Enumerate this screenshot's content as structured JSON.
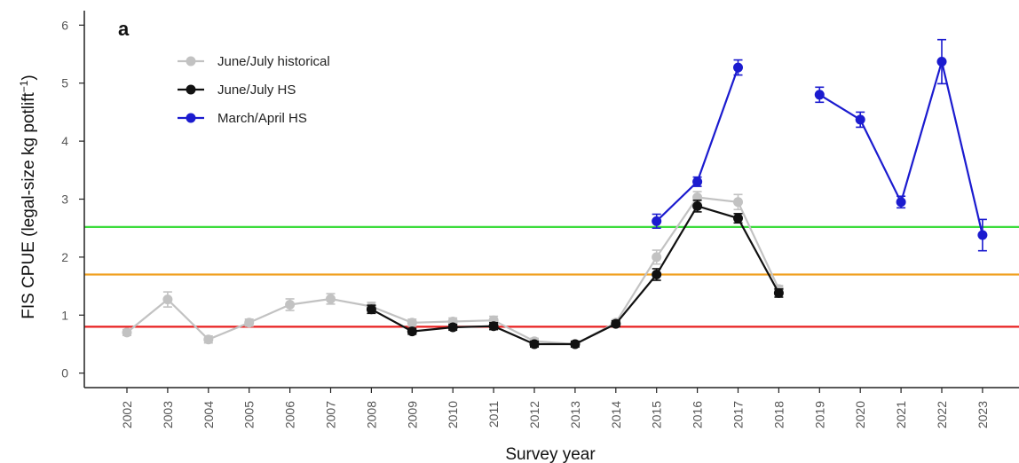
{
  "chart_data": {
    "type": "line",
    "panel_label": "a",
    "xlabel": "Survey year",
    "ylabel": "FIS CPUE (legal-size kg potlift",
    "ylabel_sup": "−1",
    "ylabel_close": ")",
    "x": [
      "2002",
      "2003",
      "2004",
      "2005",
      "2006",
      "2007",
      "2008",
      "2009",
      "2010",
      "2011",
      "2012",
      "2013",
      "2014",
      "2015",
      "2016",
      "2017",
      "2018",
      "2019",
      "2020",
      "2021",
      "2022",
      "2023"
    ],
    "ylim": [
      -0.25,
      6.25
    ],
    "yticks": [
      0,
      1,
      2,
      3,
      4,
      5,
      6
    ],
    "yticks_labels": [
      "0",
      "1",
      "2",
      "3",
      "4",
      "5",
      "6"
    ],
    "grid": false,
    "legend_position": "top-left",
    "series": [
      {
        "name": "June/July historical",
        "color": "#c2c2c2",
        "points": [
          {
            "x": "2002",
            "y": 0.7,
            "err": 0.05
          },
          {
            "x": "2003",
            "y": 1.27,
            "err": 0.13
          },
          {
            "x": "2004",
            "y": 0.58,
            "err": 0.06
          },
          {
            "x": "2005",
            "y": 0.87,
            "err": 0.06
          },
          {
            "x": "2006",
            "y": 1.18,
            "err": 0.1
          },
          {
            "x": "2007",
            "y": 1.28,
            "err": 0.09
          },
          {
            "x": "2008",
            "y": 1.15,
            "err": 0.07
          },
          {
            "x": "2009",
            "y": 0.87,
            "err": 0.06
          },
          {
            "x": "2010",
            "y": 0.89,
            "err": 0.06
          },
          {
            "x": "2011",
            "y": 0.91,
            "err": 0.07
          },
          {
            "x": "2012",
            "y": 0.55,
            "err": 0.05
          },
          {
            "x": "2013",
            "y": 0.5,
            "err": 0.05
          },
          {
            "x": "2014",
            "y": 0.87,
            "err": 0.05
          },
          {
            "x": "2015",
            "y": 2.0,
            "err": 0.12
          },
          {
            "x": "2016",
            "y": 3.03,
            "err": 0.1
          },
          {
            "x": "2017",
            "y": 2.95,
            "err": 0.13
          },
          {
            "x": "2018",
            "y": 1.45,
            "err": 0.06
          }
        ]
      },
      {
        "name": "June/July HS",
        "color": "#111111",
        "points": [
          {
            "x": "2008",
            "y": 1.1,
            "err": 0.07
          },
          {
            "x": "2009",
            "y": 0.72,
            "err": 0.05
          },
          {
            "x": "2010",
            "y": 0.79,
            "err": 0.05
          },
          {
            "x": "2011",
            "y": 0.81,
            "err": 0.06
          },
          {
            "x": "2012",
            "y": 0.5,
            "err": 0.05
          },
          {
            "x": "2013",
            "y": 0.5,
            "err": 0.05
          },
          {
            "x": "2014",
            "y": 0.85,
            "err": 0.05
          },
          {
            "x": "2015",
            "y": 1.7,
            "err": 0.1
          },
          {
            "x": "2016",
            "y": 2.88,
            "err": 0.1
          },
          {
            "x": "2017",
            "y": 2.67,
            "err": 0.08
          },
          {
            "x": "2018",
            "y": 1.38,
            "err": 0.07
          }
        ]
      },
      {
        "name": "March/April HS",
        "color": "#1b1bcf",
        "segments": [
          [
            "2015",
            "2016",
            "2017"
          ],
          [
            "2019",
            "2020",
            "2021",
            "2022",
            "2023"
          ]
        ],
        "points": [
          {
            "x": "2015",
            "y": 2.62,
            "err": 0.12
          },
          {
            "x": "2016",
            "y": 3.3,
            "err": 0.08
          },
          {
            "x": "2017",
            "y": 5.27,
            "err": 0.13
          },
          {
            "x": "2019",
            "y": 4.8,
            "err": 0.13
          },
          {
            "x": "2020",
            "y": 4.37,
            "err": 0.13
          },
          {
            "x": "2021",
            "y": 2.95,
            "err": 0.1
          },
          {
            "x": "2022",
            "y": 5.37,
            "err": 0.38
          },
          {
            "x": "2023",
            "y": 2.38,
            "err": 0.27
          }
        ]
      }
    ],
    "reference_lines": [
      {
        "y": 2.52,
        "color": "#3ddc3d"
      },
      {
        "y": 1.7,
        "color": "#f0a020"
      },
      {
        "y": 0.8,
        "color": "#e82020"
      }
    ]
  }
}
